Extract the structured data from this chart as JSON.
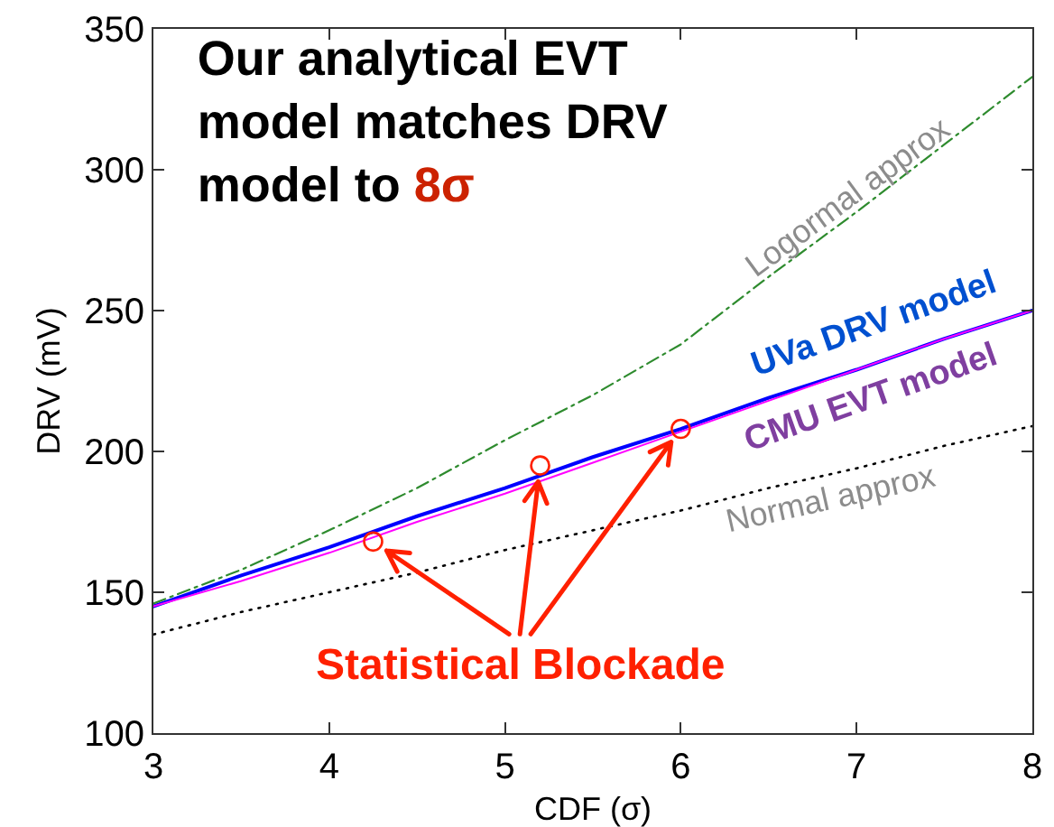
{
  "chart_data": {
    "type": "line",
    "title": "Our analytical EVT model matches DRV model to 8σ",
    "xlabel": "CDF (σ)",
    "ylabel": "DRV (mV)",
    "x": [
      3,
      3.5,
      4,
      4.5,
      5,
      5.5,
      6,
      6.5,
      7,
      7.5,
      8
    ],
    "xlim": [
      3,
      8
    ],
    "xticks": [
      3,
      4,
      5,
      6,
      7,
      8
    ],
    "ylim": [
      100,
      350
    ],
    "yticks": [
      100,
      150,
      200,
      250,
      300,
      350
    ],
    "grid": false,
    "legend": false,
    "annotations": [
      {
        "text": "Statistical Blockade",
        "x": 5.2,
        "y": 195
      }
    ],
    "series": [
      {
        "name": "UVa DRV model",
        "color": "#0000ff",
        "line_style": "solid",
        "values": [
          145,
          156,
          166,
          177,
          187,
          198,
          208,
          219,
          229,
          240,
          250
        ]
      },
      {
        "name": "CMU EVT model",
        "color": "#ff00ff",
        "line_style": "solid",
        "values": [
          145,
          154,
          164,
          175,
          185,
          196,
          207,
          218,
          229,
          240,
          250
        ]
      },
      {
        "name": "Logormal approx",
        "color": "#2e8b2e",
        "line_style": "dashed",
        "values": [
          146,
          158,
          172,
          187,
          204,
          220,
          238,
          262,
          285,
          309,
          333
        ]
      },
      {
        "name": "Normal approx",
        "color": "#000000",
        "line_style": "dotted",
        "values": [
          135,
          143,
          150,
          157,
          165,
          172,
          179,
          187,
          194,
          202,
          209
        ]
      },
      {
        "type": "scatter",
        "marker": "circle",
        "color": "#ff2000",
        "x": [
          4.25,
          5.2,
          6.0
        ],
        "values": [
          168,
          195,
          208
        ]
      }
    ]
  }
}
